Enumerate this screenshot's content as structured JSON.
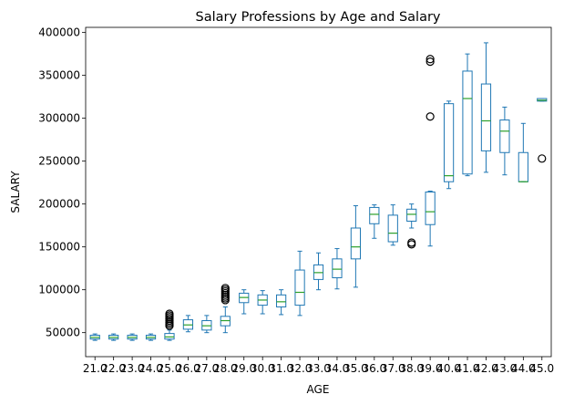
{
  "chart_data": {
    "type": "boxplot",
    "title": "Salary Professions by Age and Salary",
    "xlabel": "AGE",
    "ylabel": "SALARY",
    "ylim": [
      22000,
      406000
    ],
    "yticks": [
      50000,
      100000,
      150000,
      200000,
      250000,
      300000,
      350000,
      400000
    ],
    "grid": false,
    "legend": "none",
    "colors": {
      "box": "#1f77b4",
      "median": "#2ca02c",
      "flier": "#000000"
    },
    "categories": [
      "21.0",
      "22.0",
      "23.0",
      "24.0",
      "25.0",
      "26.0",
      "27.0",
      "28.0",
      "29.0",
      "30.0",
      "31.0",
      "32.0",
      "33.0",
      "34.0",
      "35.0",
      "36.0",
      "37.0",
      "38.0",
      "39.0",
      "40.0",
      "41.0",
      "42.0",
      "43.0",
      "44.0",
      "45.0"
    ],
    "boxes": [
      {
        "whislo": 41000,
        "q1": 42500,
        "med": 44500,
        "q3": 47000,
        "whishi": 48500,
        "fliers": []
      },
      {
        "whislo": 41000,
        "q1": 42500,
        "med": 44500,
        "q3": 47000,
        "whishi": 48500,
        "fliers": []
      },
      {
        "whislo": 41000,
        "q1": 42500,
        "med": 44500,
        "q3": 47000,
        "whishi": 48500,
        "fliers": []
      },
      {
        "whislo": 41000,
        "q1": 42500,
        "med": 44500,
        "q3": 47000,
        "whishi": 48500,
        "fliers": []
      },
      {
        "whislo": 41000,
        "q1": 42500,
        "med": 45000,
        "q3": 49000,
        "whishi": 53000,
        "fliers": [
          58000,
          60000,
          62000,
          64000,
          66000,
          68000,
          70000,
          72000
        ]
      },
      {
        "whislo": 51000,
        "q1": 54000,
        "med": 59000,
        "q3": 65000,
        "whishi": 70000,
        "fliers": []
      },
      {
        "whislo": 50000,
        "q1": 53000,
        "med": 58000,
        "q3": 64000,
        "whishi": 70000,
        "fliers": []
      },
      {
        "whislo": 50000,
        "q1": 58000,
        "med": 64000,
        "q3": 69000,
        "whishi": 80000,
        "fliers": [
          88000,
          90000,
          92000,
          94000,
          96000,
          98000,
          100000,
          102000
        ]
      },
      {
        "whislo": 72000,
        "q1": 85000,
        "med": 91000,
        "q3": 96000,
        "whishi": 100000,
        "fliers": []
      },
      {
        "whislo": 72000,
        "q1": 82000,
        "med": 88000,
        "q3": 94000,
        "whishi": 99000,
        "fliers": []
      },
      {
        "whislo": 71000,
        "q1": 80000,
        "med": 86000,
        "q3": 94000,
        "whishi": 100000,
        "fliers": []
      },
      {
        "whislo": 70000,
        "q1": 82000,
        "med": 97000,
        "q3": 123000,
        "whishi": 145000,
        "fliers": []
      },
      {
        "whislo": 100000,
        "q1": 112000,
        "med": 120000,
        "q3": 129000,
        "whishi": 143000,
        "fliers": []
      },
      {
        "whislo": 101000,
        "q1": 114000,
        "med": 124000,
        "q3": 136000,
        "whishi": 148000,
        "fliers": []
      },
      {
        "whislo": 103000,
        "q1": 136000,
        "med": 150000,
        "q3": 172000,
        "whishi": 198000,
        "fliers": []
      },
      {
        "whislo": 160000,
        "q1": 177000,
        "med": 188000,
        "q3": 196000,
        "whishi": 199000,
        "fliers": []
      },
      {
        "whislo": 152000,
        "q1": 156000,
        "med": 166000,
        "q3": 187000,
        "whishi": 199000,
        "fliers": []
      },
      {
        "whislo": 172000,
        "q1": 180000,
        "med": 188000,
        "q3": 194000,
        "whishi": 200000,
        "fliers": [
          153000,
          155000
        ]
      },
      {
        "whislo": 151000,
        "q1": 176000,
        "med": 191000,
        "q3": 214000,
        "whishi": 215000,
        "fliers": [
          302000,
          366000,
          369000
        ]
      },
      {
        "whislo": 218000,
        "q1": 226000,
        "med": 233000,
        "q3": 317000,
        "whishi": 320000,
        "fliers": []
      },
      {
        "whislo": 233000,
        "q1": 235000,
        "med": 323000,
        "q3": 355000,
        "whishi": 375000,
        "fliers": []
      },
      {
        "whislo": 237000,
        "q1": 262000,
        "med": 297000,
        "q3": 340000,
        "whishi": 388000,
        "fliers": []
      },
      {
        "whislo": 234000,
        "q1": 260000,
        "med": 285000,
        "q3": 298000,
        "whishi": 313000,
        "fliers": []
      },
      {
        "whislo": 226000,
        "q1": 226000,
        "med": 226000,
        "q3": 260000,
        "whishi": 294000,
        "fliers": []
      },
      {
        "whislo": 320000,
        "q1": 320000,
        "med": 321000,
        "q3": 323000,
        "whishi": 323000,
        "fliers": [
          253000
        ]
      }
    ]
  }
}
